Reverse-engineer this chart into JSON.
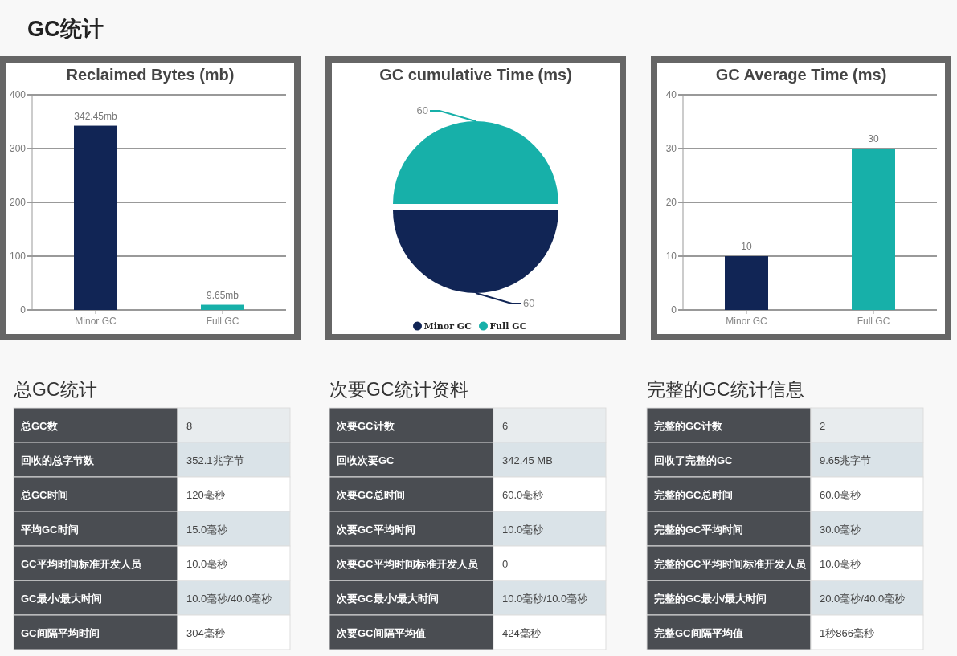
{
  "chart_data": [
    {
      "type": "other",
      "title": "GC统计"
    },
    {
      "type": "bar",
      "title": "Reclaimed Bytes (mb)",
      "categories": [
        "Minor GC",
        "Full GC"
      ],
      "values": [
        342.45,
        9.65
      ],
      "colors": [
        "#112555",
        "#17b0a9"
      ],
      "value_labels": [
        "342.45mb",
        "9.65mb"
      ],
      "ylim": [
        0,
        400
      ],
      "yticks": [
        0,
        100,
        200,
        300,
        400
      ],
      "grid": "y"
    },
    {
      "type": "pie",
      "title": "GC cumulative Time (ms)",
      "categories": [
        "Minor GC",
        "Full GC"
      ],
      "values": [
        60,
        60
      ],
      "colors": [
        "#112555",
        "#17b0a9"
      ],
      "data_labels": true,
      "legend": "bottom"
    },
    {
      "type": "bar",
      "title": "GC Average Time (ms)",
      "categories": [
        "Minor GC",
        "Full GC"
      ],
      "values": [
        10,
        30
      ],
      "colors": [
        "#112555",
        "#17b0a9"
      ],
      "data_labels": true,
      "ylim": [
        0,
        40
      ],
      "yticks": [
        0,
        10,
        20,
        30,
        40
      ],
      "grid": "y"
    },
    {
      "type": "other",
      "title": "总GC统计",
      "annotations": [
        "总GC数",
        "8",
        "回收的总字节数",
        "352.1兆字节",
        "总GC时间",
        "120毫秒",
        "平均GC时间",
        "15.0毫秒",
        "GC平均时间标准开发人员",
        "10.0毫秒",
        "GC最小/最大时间",
        "10.0毫秒/40.0毫秒",
        "GC间隔平均时间",
        "304毫秒"
      ]
    },
    {
      "type": "other",
      "title": "次要GC统计资料",
      "annotations": [
        "次要GC计数",
        "6",
        "回收次要GC",
        "342.45 MB",
        "次要GC总时间",
        "60.0毫秒",
        "次要GC平均时间",
        "10.0毫秒",
        "次要GC平均时间标准开发人员",
        "0",
        "次要GC最小/最大时间",
        "10.0毫秒/10.0毫秒",
        "次要GC间隔平均值",
        "424毫秒"
      ]
    },
    {
      "type": "other",
      "title": "完整的GC统计信息",
      "annotations": [
        "完整的GC计数",
        "2",
        "回收了完整的GC",
        "9.65兆字节",
        "完整的GC总时间",
        "60.0毫秒",
        "完整的GC平均时间",
        "30.0毫秒",
        "完整的GC平均时间标准开发人员",
        "10.0毫秒",
        "完整的GC最小/最大时间",
        "20.0毫秒/40.0毫秒",
        "完整GC间隔平均值",
        "1秒866毫秒"
      ]
    }
  ]
}
